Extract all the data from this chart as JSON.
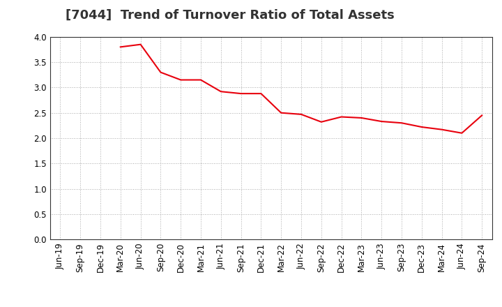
{
  "title": "[7044]  Trend of Turnover Ratio of Total Assets",
  "x_labels": [
    "Jun-19",
    "Sep-19",
    "Dec-19",
    "Mar-20",
    "Jun-20",
    "Sep-20",
    "Dec-20",
    "Mar-21",
    "Jun-21",
    "Sep-21",
    "Dec-21",
    "Mar-22",
    "Jun-22",
    "Sep-22",
    "Dec-22",
    "Mar-23",
    "Jun-23",
    "Sep-23",
    "Dec-23",
    "Mar-24",
    "Jun-24",
    "Sep-24"
  ],
  "values": [
    null,
    null,
    null,
    3.8,
    3.85,
    3.3,
    3.15,
    3.15,
    2.92,
    2.88,
    2.88,
    2.5,
    2.47,
    2.32,
    2.42,
    2.4,
    2.33,
    2.3,
    2.22,
    2.17,
    2.1,
    2.45
  ],
  "line_color": "#e8000d",
  "line_width": 1.5,
  "ylim": [
    0.0,
    4.0
  ],
  "yticks": [
    0.0,
    0.5,
    1.0,
    1.5,
    2.0,
    2.5,
    3.0,
    3.5,
    4.0
  ],
  "background_color": "#ffffff",
  "grid_color": "#aaaaaa",
  "title_fontsize": 13,
  "tick_fontsize": 8.5
}
